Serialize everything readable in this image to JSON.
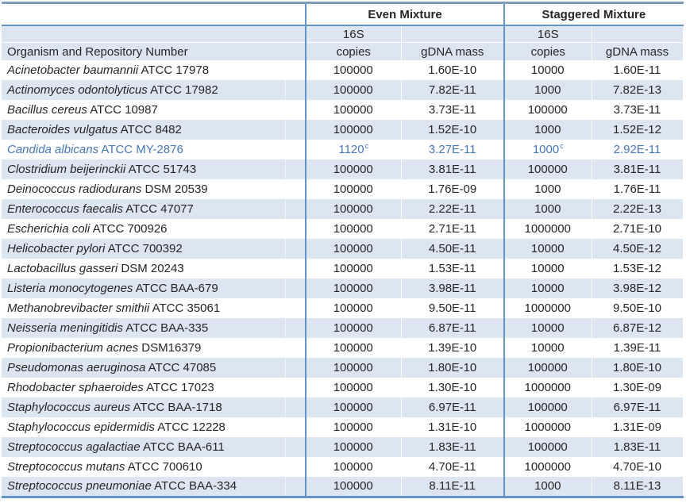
{
  "colors": {
    "line": "#6494c7",
    "topline": "#7f9cba",
    "band": "#dce6f1",
    "highlight": "#4677b8",
    "text": "#262626"
  },
  "table": {
    "group_headers": {
      "even": "Even Mixture",
      "staggered": "Staggered Mixture"
    },
    "sub_headers": {
      "organism": "Organism and Repository Number",
      "s16": "16S",
      "copies": "copies",
      "gdna": "gDNA mass"
    },
    "rows": [
      {
        "name": "Acinetobacter baumannii",
        "repo": "ATCC 17978",
        "even_copies": "100000",
        "even_gdna": "1.60E-10",
        "stag_copies": "10000",
        "stag_gdna": "1.60E-11"
      },
      {
        "name": "Actinomyces odontolyticus",
        "repo": "ATCC 17982",
        "even_copies": "100000",
        "even_gdna": "7.82E-11",
        "stag_copies": "1000",
        "stag_gdna": "7.82E-13"
      },
      {
        "name": "Bacillus cereus",
        "repo": "ATCC 10987",
        "even_copies": "100000",
        "even_gdna": "3.73E-11",
        "stag_copies": "100000",
        "stag_gdna": "3.73E-11"
      },
      {
        "name": "Bacteroides vulgatus",
        "repo": "ATCC 8482",
        "even_copies": "100000",
        "even_gdna": "1.52E-10",
        "stag_copies": "1000",
        "stag_gdna": "1.52E-12"
      },
      {
        "name": "Candida albicans",
        "repo": "ATCC MY-2876",
        "highlight": true,
        "even_copies": "1120",
        "even_copies_sup": "c",
        "even_gdna": "3.27E-11",
        "stag_copies": "1000",
        "stag_copies_sup": "c",
        "stag_gdna": "2.92E-11"
      },
      {
        "name": "Clostridium beijerinckii",
        "repo": "ATCC 51743",
        "even_copies": "100000",
        "even_gdna": "3.81E-11",
        "stag_copies": "100000",
        "stag_gdna": "3.81E-11"
      },
      {
        "name": "Deinococcus radiodurans",
        "repo": "DSM 20539",
        "even_copies": "100000",
        "even_gdna": "1.76E-09",
        "stag_copies": "1000",
        "stag_gdna": "1.76E-11"
      },
      {
        "name": "Enterococcus faecalis",
        "repo": "ATCC 47077",
        "even_copies": "100000",
        "even_gdna": "2.22E-11",
        "stag_copies": "1000",
        "stag_gdna": "2.22E-13"
      },
      {
        "name": "Escherichia coli",
        "repo": "ATCC 700926",
        "even_copies": "100000",
        "even_gdna": "2.71E-11",
        "stag_copies": "1000000",
        "stag_gdna": "2.71E-10"
      },
      {
        "name": "Helicobacter pylori",
        "repo": "ATCC 700392",
        "even_copies": "100000",
        "even_gdna": "4.50E-11",
        "stag_copies": "10000",
        "stag_gdna": "4.50E-12"
      },
      {
        "name": "Lactobacillus gasseri",
        "repo": "DSM 20243",
        "even_copies": "100000",
        "even_gdna": "1.53E-11",
        "stag_copies": "10000",
        "stag_gdna": "1.53E-12"
      },
      {
        "name": "Listeria monocytogenes",
        "repo": "ATCC BAA-679",
        "even_copies": "100000",
        "even_gdna": "3.98E-11",
        "stag_copies": "10000",
        "stag_gdna": "3.98E-12"
      },
      {
        "name": "Methanobrevibacter smithii",
        "repo": "ATCC 35061",
        "even_copies": "100000",
        "even_gdna": "9.50E-11",
        "stag_copies": "1000000",
        "stag_gdna": "9.50E-10"
      },
      {
        "name": "Neisseria meningitidis",
        "repo": "ATCC BAA-335",
        "even_copies": "100000",
        "even_gdna": "6.87E-11",
        "stag_copies": "10000",
        "stag_gdna": "6.87E-12"
      },
      {
        "name": "Propionibacterium acnes",
        "repo": "DSM16379",
        "even_copies": "100000",
        "even_gdna": "1.39E-10",
        "stag_copies": "10000",
        "stag_gdna": "1.39E-11"
      },
      {
        "name": "Pseudomonas aeruginosa",
        "repo": "ATCC 47085",
        "even_copies": "100000",
        "even_gdna": "1.80E-10",
        "stag_copies": "100000",
        "stag_gdna": "1.80E-10"
      },
      {
        "name": "Rhodobacter sphaeroides",
        "repo": "ATCC 17023",
        "even_copies": "100000",
        "even_gdna": "1.30E-10",
        "stag_copies": "1000000",
        "stag_gdna": "1.30E-09"
      },
      {
        "name": "Staphylococcus aureus",
        "repo": "ATCC BAA-1718",
        "even_copies": "100000",
        "even_gdna": "6.97E-11",
        "stag_copies": "100000",
        "stag_gdna": "6.97E-11"
      },
      {
        "name": "Staphylococcus epidermidis",
        "repo": "ATCC 12228",
        "even_copies": "100000",
        "even_gdna": "1.31E-10",
        "stag_copies": "1000000",
        "stag_gdna": "1.31E-09"
      },
      {
        "name": "Streptococcus agalactiae",
        "repo": "ATCC BAA-611",
        "even_copies": "100000",
        "even_gdna": "1.83E-11",
        "stag_copies": "100000",
        "stag_gdna": "1.83E-11"
      },
      {
        "name": "Streptococcus mutans",
        "repo": "ATCC 700610",
        "even_copies": "100000",
        "even_gdna": "4.70E-11",
        "stag_copies": "1000000",
        "stag_gdna": "4.70E-10"
      },
      {
        "name": "Streptococcus pneumoniae",
        "repo": "ATCC BAA-334",
        "even_copies": "100000",
        "even_gdna": "8.11E-11",
        "stag_copies": "1000",
        "stag_gdna": "8.11E-13"
      }
    ]
  }
}
